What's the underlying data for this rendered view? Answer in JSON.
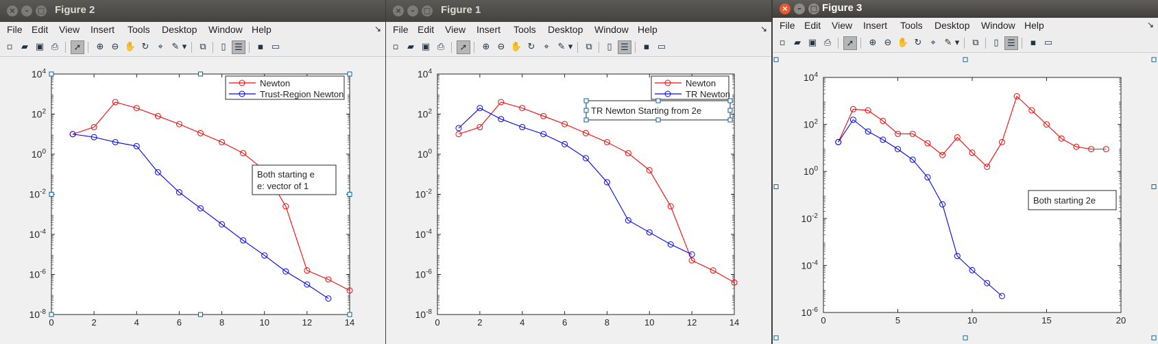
{
  "menu": [
    "File",
    "Edit",
    "View",
    "Insert",
    "Tools",
    "Desktop",
    "Window",
    "Help"
  ],
  "colors": {
    "newton": "#ff0000",
    "trust": "#0000ff",
    "selection": "#0060a8"
  },
  "toolbar_icons": [
    "new-figure-icon",
    "open-file-icon",
    "save-icon",
    "print-icon",
    "edit-plot-arrow-icon",
    "zoom-in-icon",
    "zoom-out-icon",
    "pan-hand-icon",
    "rotate-3d-icon",
    "data-cursor-icon",
    "brush-icon",
    "brush-dropdown-icon",
    "link-plot-icon",
    "insert-colorbar-icon",
    "insert-legend-icon",
    "hide-plot-tools-icon",
    "show-plot-tools-icon"
  ],
  "windows": [
    {
      "id": "fig2",
      "title": "Figure 2",
      "chart_data": {
        "type": "line",
        "yscale": "log",
        "xlim": [
          0,
          14
        ],
        "ylim_exp": [
          -8,
          4
        ],
        "xticks": [
          "0",
          "2",
          "4",
          "6",
          "8",
          "10",
          "12",
          "14"
        ],
        "yticks": [
          "-8",
          "-6",
          "-4",
          "-2",
          "0",
          "2",
          "4"
        ],
        "series": [
          {
            "name": "Newton",
            "color": "#ff0000",
            "x": [
              1,
              2,
              3,
              4,
              5,
              6,
              7,
              8,
              9,
              10,
              11,
              12,
              13,
              14
            ],
            "y_exp": [
              1.0,
              1.35,
              2.6,
              2.3,
              1.9,
              1.5,
              1.05,
              0.6,
              0.05,
              -0.8,
              -2.6,
              -5.8,
              -6.25,
              -6.8
            ]
          },
          {
            "name": "Trust-Region Newton",
            "color": "#0000ff",
            "x": [
              1,
              2,
              3,
              4,
              5,
              6,
              7,
              8,
              9,
              10,
              11,
              12,
              13
            ],
            "y_exp": [
              1.0,
              0.85,
              0.6,
              0.4,
              -0.9,
              -1.9,
              -2.7,
              -3.5,
              -4.3,
              -5.05,
              -5.85,
              -6.5,
              -7.2
            ]
          }
        ],
        "legend": [
          "Newton",
          "Trust-Region Newton"
        ],
        "annotation": [
          "Both starting e",
          "e: vector of 1"
        ]
      }
    },
    {
      "id": "fig1",
      "title": "Figure 1",
      "chart_data": {
        "type": "line",
        "yscale": "log",
        "xlim": [
          0,
          14
        ],
        "ylim_exp": [
          -8,
          4
        ],
        "xticks": [
          "0",
          "2",
          "4",
          "6",
          "8",
          "10",
          "12",
          "14"
        ],
        "yticks": [
          "-8",
          "-6",
          "-4",
          "-2",
          "0",
          "2",
          "4"
        ],
        "series": [
          {
            "name": "Newton",
            "color": "#ff0000",
            "x": [
              1,
              2,
              3,
              4,
              5,
              6,
              7,
              8,
              9,
              10,
              11,
              12,
              13,
              14
            ],
            "y_exp": [
              1.0,
              1.35,
              2.6,
              2.3,
              1.9,
              1.5,
              1.05,
              0.6,
              0.05,
              -0.8,
              -2.6,
              -5.3,
              -5.8,
              -6.4
            ]
          },
          {
            "name": "TR Newton",
            "color": "#0000ff",
            "x": [
              1,
              2,
              3,
              4,
              5,
              6,
              7,
              8,
              9,
              10,
              11,
              12
            ],
            "y_exp": [
              1.3,
              2.3,
              1.75,
              1.35,
              1.0,
              0.5,
              -0.2,
              -1.4,
              -3.3,
              -3.9,
              -4.5,
              -5.0
            ]
          }
        ],
        "legend": [
          "Newton",
          "TR Newton"
        ],
        "annotation": [
          "TR Newton Starting from 2e"
        ]
      }
    },
    {
      "id": "fig3",
      "title": "Figure 3",
      "chart_data": {
        "type": "line",
        "yscale": "log",
        "xlim": [
          0,
          20
        ],
        "ylim_exp": [
          -6,
          4
        ],
        "xticks": [
          "0",
          "5",
          "10",
          "15",
          "20"
        ],
        "yticks": [
          "-6",
          "-4",
          "-2",
          "0",
          "2",
          "4"
        ],
        "series": [
          {
            "name": "",
            "color": "#ff0000",
            "x": [
              1,
              2,
              3,
              4,
              5,
              6,
              7,
              8,
              9,
              10,
              11,
              12,
              13,
              14,
              15,
              16,
              17,
              18,
              19
            ],
            "y_exp": [
              1.25,
              2.65,
              2.6,
              2.15,
              1.6,
              1.6,
              1.2,
              0.7,
              1.45,
              0.8,
              0.2,
              1.25,
              3.2,
              2.6,
              2.0,
              1.4,
              1.05,
              0.95,
              0.95
            ]
          },
          {
            "name": "",
            "color": "#0000ff",
            "x": [
              1,
              2,
              3,
              4,
              5,
              6,
              7,
              8,
              9,
              10,
              11,
              12
            ],
            "y_exp": [
              1.25,
              2.2,
              1.7,
              1.35,
              0.95,
              0.5,
              -0.25,
              -1.4,
              -3.6,
              -4.2,
              -4.75,
              -5.3
            ]
          }
        ],
        "legend": [],
        "annotation": [
          "Both starting 2e"
        ]
      }
    }
  ]
}
